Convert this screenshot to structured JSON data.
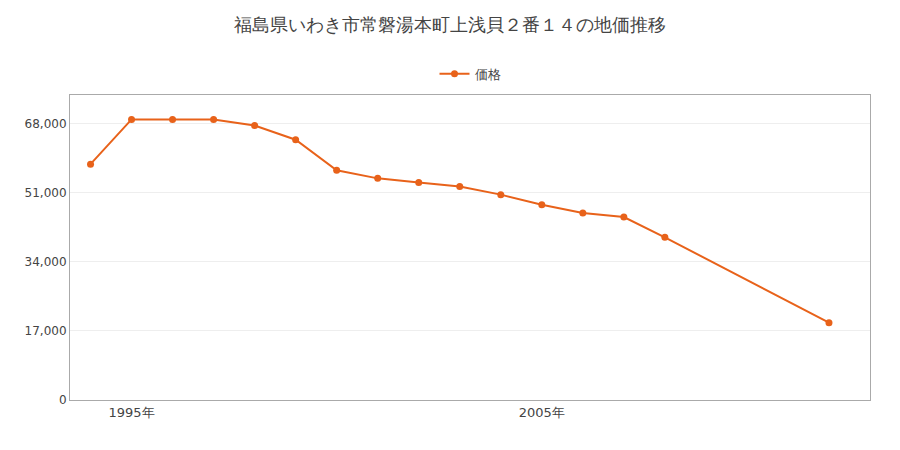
{
  "chart_data": {
    "type": "line",
    "title": "福島県いわき市常磐湯本町上浅貝２番１４の地価推移",
    "x": [
      1994,
      1995,
      1996,
      1997,
      1998,
      1999,
      2000,
      2001,
      2002,
      2003,
      2004,
      2005,
      2006,
      2007,
      2008,
      2012
    ],
    "series": [
      {
        "name": "価格",
        "color": "#e8621a",
        "marker": "circle",
        "values": [
          58000,
          69000,
          69000,
          69000,
          67500,
          64000,
          56500,
          54500,
          53500,
          52500,
          50500,
          48000,
          46000,
          45000,
          40000,
          19000
        ]
      }
    ],
    "xlim": [
      1993.5,
      2013
    ],
    "xticks": [
      {
        "value": 1995,
        "label": "1995年"
      },
      {
        "value": 2005,
        "label": "2005年"
      }
    ],
    "ylim": [
      0,
      75000
    ],
    "yticks": [
      0,
      {
        "value": 17000,
        "label": "17,000"
      },
      {
        "value": 34000,
        "label": "34,000"
      },
      {
        "value": 51000,
        "label": "51,000"
      },
      {
        "value": 68000,
        "label": "68,000"
      }
    ],
    "grid": "y",
    "legend": "top"
  }
}
